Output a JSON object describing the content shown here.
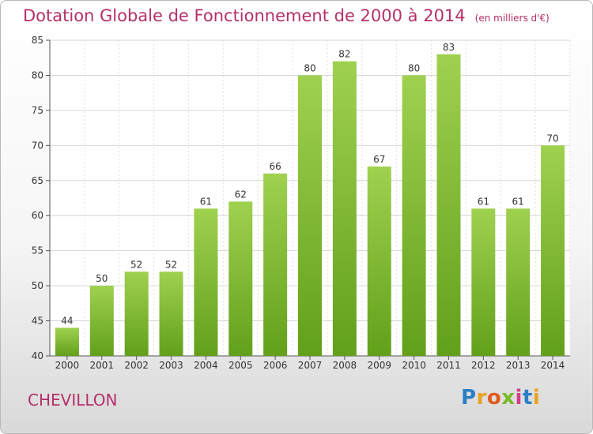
{
  "header": {
    "title": "Dotation Globale de Fonctionnement de 2000 à 2014",
    "unit": "(en milliers d'€)"
  },
  "footer": {
    "commune": "CHEVILLON",
    "brand": {
      "letters": [
        "P",
        "r",
        "o",
        "x",
        "i",
        "t",
        "i"
      ],
      "colors": [
        "#2b7fc7",
        "#e8a21e",
        "#e05a1a",
        "#7ab829",
        "#d43f8d",
        "#2b7fc7",
        "#e8a21e"
      ]
    }
  },
  "chart_data": {
    "type": "bar",
    "title": "Dotation Globale de Fonctionnement de 2000 à 2014",
    "categories": [
      "2000",
      "2001",
      "2002",
      "2003",
      "2004",
      "2005",
      "2006",
      "2007",
      "2008",
      "2009",
      "2010",
      "2011",
      "2012",
      "2013",
      "2014"
    ],
    "values": [
      44,
      50,
      52,
      52,
      61,
      62,
      66,
      80,
      82,
      67,
      80,
      83,
      61,
      61,
      70
    ],
    "ylim": [
      40,
      85
    ],
    "yticks": [
      40,
      45,
      50,
      55,
      60,
      65,
      70,
      75,
      80,
      85
    ],
    "grid": true,
    "bar_color_top": "#9fd14f",
    "bar_color_bottom": "#62a01a"
  }
}
